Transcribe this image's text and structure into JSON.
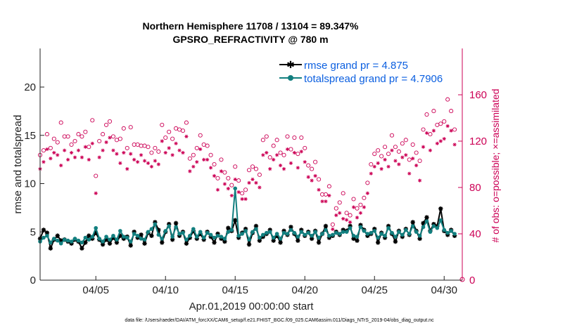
{
  "chart_data": {
    "type": "line",
    "title": "Northern Hemisphere 11708 / 13104 = 89.347%",
    "subtitle": "GPSRO_REFRACTIVITY @ 780 m",
    "xlabel": "Apr.01,2019 00:00:00 start",
    "ylabel": "rmse and totalspread",
    "y2label": "# of obs: o=possible; ×=assimilated",
    "xlim": [
      1,
      31.3
    ],
    "ylim": [
      0,
      24
    ],
    "y2lim": [
      0,
      200
    ],
    "x_ticks": [
      5,
      10,
      15,
      20,
      25,
      30
    ],
    "x_tick_labels": [
      "04/05",
      "04/10",
      "04/15",
      "04/20",
      "04/25",
      "04/30"
    ],
    "y_ticks": [
      0,
      5,
      10,
      15,
      20
    ],
    "y2_ticks": [
      0,
      40,
      80,
      120,
      160
    ],
    "legend_position": "top-right",
    "series": [
      {
        "name": "rmse grand pr = 4.875",
        "color": "#000000",
        "marker": "star",
        "axis": "left",
        "x": [
          1.0,
          1.25,
          1.5,
          1.75,
          2.0,
          2.25,
          2.5,
          2.75,
          3.0,
          3.25,
          3.5,
          3.75,
          4.0,
          4.25,
          4.5,
          4.75,
          5.0,
          5.25,
          5.5,
          5.75,
          6.0,
          6.25,
          6.5,
          6.75,
          7.0,
          7.25,
          7.5,
          7.75,
          8.0,
          8.25,
          8.5,
          8.75,
          9.0,
          9.25,
          9.5,
          9.75,
          10.0,
          10.25,
          10.5,
          10.75,
          11.0,
          11.25,
          11.5,
          11.75,
          12.0,
          12.25,
          12.5,
          12.75,
          13.0,
          13.25,
          13.5,
          13.75,
          14.0,
          14.25,
          14.5,
          14.75,
          15.0,
          15.25,
          15.5,
          15.75,
          16.0,
          16.25,
          16.5,
          16.75,
          17.0,
          17.25,
          17.5,
          17.75,
          18.0,
          18.25,
          18.5,
          18.75,
          19.0,
          19.25,
          19.5,
          19.75,
          20.0,
          20.25,
          20.5,
          20.75,
          21.0,
          21.25,
          21.5,
          21.75,
          22.0,
          22.25,
          22.5,
          22.75,
          23.0,
          23.25,
          23.5,
          23.75,
          24.0,
          24.25,
          24.5,
          24.75,
          25.0,
          25.25,
          25.5,
          25.75,
          26.0,
          26.25,
          26.5,
          26.75,
          27.0,
          27.25,
          27.5,
          27.75,
          28.0,
          28.25,
          28.5,
          28.75,
          29.0,
          29.25,
          29.5,
          29.75,
          30.0,
          30.25,
          30.5,
          30.75
        ],
        "values": [
          4.3,
          5.2,
          4.9,
          3.3,
          4.2,
          4.6,
          4.1,
          4.2,
          4.0,
          3.8,
          4.2,
          4.0,
          3.3,
          3.9,
          4.6,
          4.3,
          4.9,
          4.2,
          3.7,
          4.2,
          3.8,
          4.4,
          3.9,
          4.6,
          4.3,
          4.5,
          3.6,
          5.0,
          4.4,
          4.7,
          3.8,
          4.9,
          4.6,
          6.0,
          5.2,
          3.9,
          5.0,
          5.8,
          4.2,
          5.9,
          4.6,
          5.0,
          3.8,
          4.4,
          5.1,
          4.3,
          4.8,
          4.2,
          5.0,
          4.5,
          3.9,
          4.8,
          4.3,
          4.0,
          5.4,
          5.1,
          6.2,
          4.4,
          4.9,
          5.3,
          3.7,
          4.9,
          5.6,
          4.1,
          4.5,
          4.8,
          5.2,
          4.1,
          4.6,
          3.9,
          5.1,
          4.7,
          5.5,
          4.8,
          4.1,
          5.2,
          4.6,
          5.0,
          4.3,
          5.1,
          3.9,
          4.8,
          5.6,
          4.4,
          4.6,
          5.0,
          4.7,
          5.2,
          5.1,
          5.6,
          4.3,
          4.1,
          5.7,
          5.2,
          4.6,
          4.8,
          5.3,
          3.9,
          4.9,
          4.4,
          5.6,
          4.8,
          4.0,
          5.1,
          4.5,
          5.3,
          4.7,
          6.0,
          5.1,
          4.3,
          5.9,
          6.5,
          5.1,
          5.8,
          5.6,
          7.4,
          5.1,
          4.7,
          5.2,
          4.6
        ]
      },
      {
        "name": "totalspread grand pr = 4.7906",
        "color": "#127f7f",
        "marker": "circle",
        "axis": "left",
        "x": [
          1.0,
          1.25,
          1.5,
          1.75,
          2.0,
          2.25,
          2.5,
          2.75,
          3.0,
          3.25,
          3.5,
          3.75,
          4.0,
          4.25,
          4.5,
          4.75,
          5.0,
          5.25,
          5.5,
          5.75,
          6.0,
          6.25,
          6.5,
          6.75,
          7.0,
          7.25,
          7.5,
          7.75,
          8.0,
          8.25,
          8.5,
          8.75,
          9.0,
          9.25,
          9.5,
          9.75,
          10.0,
          10.25,
          10.5,
          10.75,
          11.0,
          11.25,
          11.5,
          11.75,
          12.0,
          12.25,
          12.5,
          12.75,
          13.0,
          13.25,
          13.5,
          13.75,
          14.0,
          14.25,
          14.5,
          14.75,
          15.0,
          15.25,
          15.5,
          15.75,
          16.0,
          16.25,
          16.5,
          16.75,
          17.0,
          17.25,
          17.5,
          17.75,
          18.0,
          18.25,
          18.5,
          18.75,
          19.0,
          19.25,
          19.5,
          19.75,
          20.0,
          20.25,
          20.5,
          20.75,
          21.0,
          21.25,
          21.5,
          21.75,
          22.0,
          22.25,
          22.5,
          22.75,
          23.0,
          23.25,
          23.5,
          23.75,
          24.0,
          24.25,
          24.5,
          24.75,
          25.0,
          25.25,
          25.5,
          25.75,
          26.0,
          26.25,
          26.5,
          26.75,
          27.0,
          27.25,
          27.5,
          27.75,
          28.0,
          28.25,
          28.5,
          28.75,
          29.0,
          29.25,
          29.5,
          29.75,
          30.0,
          30.25,
          30.5,
          30.75
        ],
        "values": [
          4.0,
          4.4,
          4.6,
          3.9,
          4.3,
          4.1,
          3.8,
          4.2,
          4.1,
          4.0,
          4.3,
          4.1,
          3.9,
          4.4,
          4.2,
          4.5,
          5.4,
          4.3,
          4.0,
          4.5,
          4.2,
          4.6,
          4.2,
          5.1,
          4.5,
          4.4,
          4.0,
          4.8,
          4.6,
          4.3,
          4.2,
          5.0,
          5.3,
          5.8,
          4.7,
          4.3,
          5.1,
          5.6,
          4.5,
          5.5,
          4.8,
          4.9,
          4.2,
          4.6,
          5.3,
          4.5,
          5.0,
          4.4,
          4.9,
          4.7,
          4.4,
          4.6,
          4.5,
          4.3,
          5.0,
          5.2,
          9.5,
          4.6,
          4.8,
          5.1,
          4.2,
          5.0,
          5.3,
          4.4,
          4.7,
          4.9,
          5.0,
          4.4,
          4.8,
          4.3,
          4.9,
          4.8,
          5.2,
          4.9,
          4.5,
          5.0,
          4.7,
          4.9,
          4.6,
          5.0,
          4.4,
          4.8,
          5.2,
          4.6,
          4.7,
          4.9,
          4.8,
          5.0,
          5.0,
          5.4,
          4.6,
          4.5,
          5.5,
          5.1,
          4.8,
          4.9,
          5.1,
          4.4,
          4.8,
          4.6,
          5.4,
          4.9,
          4.5,
          5.0,
          4.7,
          5.2,
          4.8,
          5.6,
          5.0,
          4.6,
          5.5,
          6.1,
          5.0,
          5.6,
          5.4,
          6.2,
          5.2,
          4.9,
          5.1,
          4.8
        ]
      },
      {
        "name": "# of obs possible",
        "color": "#cc0055",
        "marker": "open-circle",
        "axis": "right",
        "x": [
          1.0,
          1.25,
          1.5,
          1.75,
          2.0,
          2.25,
          2.5,
          2.75,
          3.0,
          3.25,
          3.5,
          3.75,
          4.0,
          4.25,
          4.5,
          4.75,
          5.0,
          5.25,
          5.5,
          5.75,
          6.0,
          6.25,
          6.5,
          6.75,
          7.0,
          7.25,
          7.5,
          7.75,
          8.0,
          8.25,
          8.5,
          8.75,
          9.0,
          9.25,
          9.5,
          9.75,
          10.0,
          10.25,
          10.5,
          10.75,
          11.0,
          11.25,
          11.5,
          11.75,
          12.0,
          12.25,
          12.5,
          12.75,
          13.0,
          13.25,
          13.5,
          13.75,
          14.0,
          14.25,
          14.5,
          14.75,
          15.0,
          15.25,
          15.5,
          15.75,
          16.0,
          16.25,
          16.5,
          16.75,
          17.0,
          17.25,
          17.5,
          17.75,
          18.0,
          18.25,
          18.5,
          18.75,
          19.0,
          19.25,
          19.5,
          19.75,
          20.0,
          20.25,
          20.5,
          20.75,
          21.0,
          21.25,
          21.5,
          21.75,
          22.0,
          22.25,
          22.5,
          22.75,
          23.0,
          23.25,
          23.5,
          23.75,
          24.0,
          24.25,
          24.5,
          24.75,
          25.0,
          25.25,
          25.5,
          25.75,
          26.0,
          26.25,
          26.5,
          26.75,
          27.0,
          27.25,
          27.5,
          27.75,
          28.0,
          28.25,
          28.5,
          28.75,
          29.0,
          29.25,
          29.5,
          29.75,
          30.0,
          30.25,
          30.5,
          30.75
        ],
        "values": [
          108,
          112,
          126,
          114,
          122,
          119,
          136,
          124,
          124,
          117,
          120,
          126,
          124,
          128,
          115,
          138,
          90,
          120,
          126,
          134,
          137,
          124,
          121,
          122,
          131,
          114,
          132,
          117,
          117,
          116,
          116,
          115,
          110,
          114,
          111,
          134,
          123,
          128,
          122,
          131,
          130,
          129,
          136,
          105,
          108,
          114,
          125,
          117,
          116,
          108,
          100,
          88,
          104,
          93,
          88,
          82,
          98,
          86,
          75,
          78,
          95,
          98,
          96,
          91,
          121,
          124,
          106,
          116,
          121,
          110,
          108,
          124,
          113,
          123,
          109,
          123,
          114,
          99,
          96,
          102,
          87,
          74,
          74,
          81,
          48,
          62,
          67,
          75,
          58,
          56,
          70,
          62,
          65,
          71,
          84,
          100,
          109,
          112,
          107,
          115,
          109,
          125,
          115,
          111,
          118,
          121,
          104,
          117,
          110,
          103,
          130,
          143,
          126,
          146,
          134,
          135,
          137,
          156,
          146,
          130
        ],
        "note": "visual estimates of sampled points"
      },
      {
        "name": "# of obs assimilated",
        "color": "#cc0055",
        "marker": "cross",
        "axis": "right",
        "x": [
          1.0,
          1.25,
          1.5,
          1.75,
          2.0,
          2.25,
          2.5,
          2.75,
          3.0,
          3.25,
          3.5,
          3.75,
          4.0,
          4.25,
          4.5,
          4.75,
          5.0,
          5.25,
          5.5,
          5.75,
          6.0,
          6.25,
          6.5,
          6.75,
          7.0,
          7.25,
          7.5,
          7.75,
          8.0,
          8.25,
          8.5,
          8.75,
          9.0,
          9.25,
          9.5,
          9.75,
          10.0,
          10.25,
          10.5,
          10.75,
          11.0,
          11.25,
          11.5,
          11.75,
          12.0,
          12.25,
          12.5,
          12.75,
          13.0,
          13.25,
          13.5,
          13.75,
          14.0,
          14.25,
          14.5,
          14.75,
          15.0,
          15.25,
          15.5,
          15.75,
          16.0,
          16.25,
          16.5,
          16.75,
          17.0,
          17.25,
          17.5,
          17.75,
          18.0,
          18.25,
          18.5,
          18.75,
          19.0,
          19.25,
          19.5,
          19.75,
          20.0,
          20.25,
          20.5,
          20.75,
          21.0,
          21.25,
          21.5,
          21.75,
          22.0,
          22.25,
          22.5,
          22.75,
          23.0,
          23.25,
          23.5,
          23.75,
          24.0,
          24.25,
          24.5,
          24.75,
          25.0,
          25.25,
          25.5,
          25.75,
          26.0,
          26.25,
          26.5,
          26.75,
          27.0,
          27.25,
          27.5,
          27.75,
          28.0,
          28.25,
          28.5,
          28.75,
          29.0,
          29.25,
          29.5,
          29.75,
          30.0,
          30.25,
          30.5,
          30.75
        ],
        "values": [
          96,
          102,
          113,
          105,
          110,
          108,
          99,
          112,
          104,
          110,
          106,
          112,
          106,
          115,
          104,
          118,
          75,
          106,
          112,
          119,
          123,
          112,
          109,
          101,
          110,
          96,
          109,
          104,
          102,
          108,
          103,
          101,
          98,
          103,
          100,
          120,
          110,
          114,
          108,
          118,
          112,
          110,
          124,
          94,
          98,
          102,
          113,
          104,
          104,
          97,
          90,
          78,
          94,
          83,
          79,
          73,
          87,
          76,
          70,
          70,
          84,
          87,
          84,
          80,
          108,
          110,
          96,
          104,
          108,
          99,
          96,
          113,
          101,
          110,
          97,
          111,
          102,
          89,
          86,
          90,
          78,
          68,
          68,
          73,
          44,
          56,
          58,
          53,
          52,
          50,
          63,
          54,
          58,
          63,
          75,
          92,
          98,
          101,
          96,
          104,
          98,
          112,
          103,
          100,
          106,
          108,
          92,
          105,
          99,
          86,
          115,
          127,
          112,
          129,
          118,
          120,
          122,
          133,
          129,
          117
        ],
        "note": "visual estimates of sampled points"
      }
    ],
    "footnote": "data file: /Users/raeder/DAI/ATM_forcXX/CAM6_setup/f.e21.FHIST_BGC.f09_025.CAM6assim.011/Diags_NTrS_2019-04/obs_diag_output.nc"
  }
}
